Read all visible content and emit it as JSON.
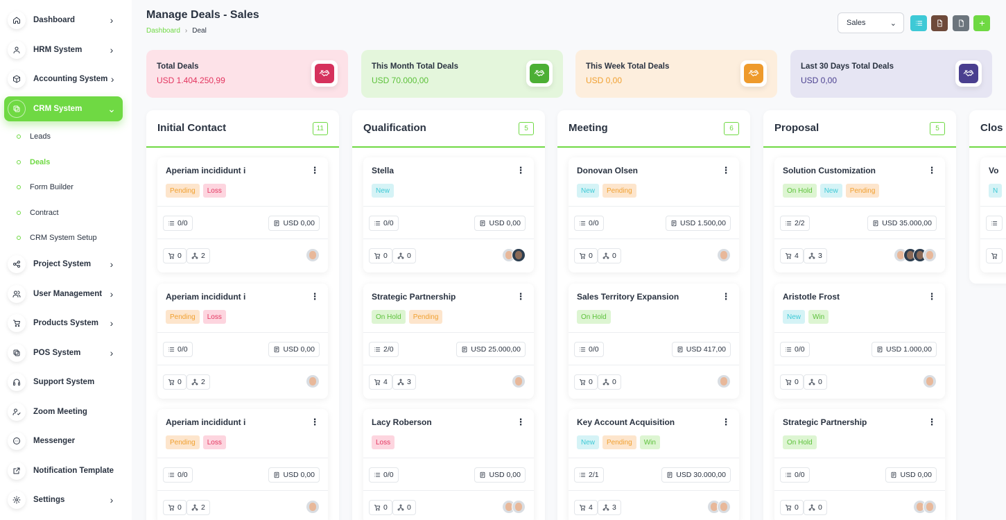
{
  "sidebar": {
    "items": [
      {
        "name": "dashboard",
        "label": "Dashboard",
        "icon": "home-icon",
        "chevron": "›",
        "active": false
      },
      {
        "name": "hrm-system",
        "label": "HRM System",
        "icon": "user-icon",
        "chevron": "›",
        "active": false
      },
      {
        "name": "accounting-system",
        "label": "Accounting System",
        "icon": "box-icon",
        "chevron": "›",
        "active": false
      },
      {
        "name": "crm-system",
        "label": "CRM System",
        "icon": "layers-icon",
        "chevron": "⌄",
        "active": true
      },
      {
        "name": "project-system",
        "label": "Project System",
        "icon": "share-icon",
        "chevron": "›",
        "active": false
      },
      {
        "name": "user-management",
        "label": "User Management",
        "icon": "users-icon",
        "chevron": "›",
        "active": false
      },
      {
        "name": "products-system",
        "label": "Products System",
        "icon": "cart-icon",
        "chevron": "›",
        "active": false
      },
      {
        "name": "pos-system",
        "label": "POS System",
        "icon": "layers-icon",
        "chevron": "›",
        "active": false
      },
      {
        "name": "support-system",
        "label": "Support System",
        "icon": "headphones-icon",
        "chevron": "",
        "active": false
      },
      {
        "name": "zoom-meeting",
        "label": "Zoom Meeting",
        "icon": "user-check-icon",
        "chevron": "",
        "active": false
      },
      {
        "name": "messenger",
        "label": "Messenger",
        "icon": "message-icon",
        "chevron": "",
        "active": false
      },
      {
        "name": "notification-template",
        "label": "Notification Template",
        "icon": "external-icon",
        "chevron": "",
        "active": false
      },
      {
        "name": "settings",
        "label": "Settings",
        "icon": "gear-icon",
        "chevron": "›",
        "active": false
      }
    ],
    "crm_subitems": [
      {
        "name": "leads",
        "label": "Leads",
        "active": false
      },
      {
        "name": "deals",
        "label": "Deals",
        "active": true
      },
      {
        "name": "form-builder",
        "label": "Form Builder",
        "active": false
      },
      {
        "name": "contract",
        "label": "Contract",
        "active": false
      },
      {
        "name": "crm-system-setup",
        "label": "CRM System Setup",
        "active": false
      }
    ]
  },
  "header": {
    "title": "Manage Deals - Sales",
    "breadcrumb": {
      "home": "Dashboard",
      "separator": "›",
      "current": "Deal"
    },
    "pipeline_select": {
      "value": "Sales",
      "caret": "⌄"
    },
    "buttons": [
      {
        "name": "list-view-button",
        "icon": "list-icon",
        "color": "#3ec9d6"
      },
      {
        "name": "import-button",
        "icon": "file-import-icon",
        "color": "#6e4a3a"
      },
      {
        "name": "export-button",
        "icon": "file-icon",
        "color": "#6c757d"
      },
      {
        "name": "add-deal-button",
        "icon": "plus-icon",
        "color": "#6fd943"
      }
    ]
  },
  "stats": [
    {
      "name": "total-deals",
      "label": "Total Deals",
      "value": "USD 1.404.250,99",
      "bg": "#fde2e8",
      "icon_bg": "#d5325d",
      "value_color": "#e3355f"
    },
    {
      "name": "this-month-total-deals",
      "label": "This Month Total Deals",
      "value": "USD 70.000,00",
      "bg": "#e4f6dc",
      "icon_bg": "#4caf35",
      "value_color": "#5cc13a"
    },
    {
      "name": "this-week-total-deals",
      "label": "This Week Total Deals",
      "value": "USD 0,00",
      "bg": "#fdeedd",
      "icon_bg": "#ee9a2c",
      "value_color": "#f0a030"
    },
    {
      "name": "last-30-days-total-deals",
      "label": "Last 30 Days Total Deals",
      "value": "USD 0,00",
      "bg": "#e6e5f3",
      "icon_bg": "#4a3f8f",
      "value_color": "#4a3f8f"
    }
  ],
  "badge_colors": {
    "Pending": {
      "bg": "#fde5cc",
      "fg": "#f0a030"
    },
    "Loss": {
      "bg": "#fdd5df",
      "fg": "#e3355f"
    },
    "New": {
      "bg": "#d5f3f6",
      "fg": "#3ec9d6"
    },
    "On Hold": {
      "bg": "#ddf5d2",
      "fg": "#5cc13a"
    },
    "Win": {
      "bg": "#ddf5d2",
      "fg": "#5cc13a"
    }
  },
  "columns": [
    {
      "name": "initial-contact",
      "title": "Initial Contact",
      "count": "11",
      "cards": [
        {
          "title": "Aperiam incididunt i",
          "badges": [
            "Pending",
            "Loss"
          ],
          "tasks": "0/0",
          "price": "USD 0,00",
          "products": "0",
          "sources": "2",
          "avatars": 1,
          "dark": []
        },
        {
          "title": "Aperiam incididunt i",
          "badges": [
            "Pending",
            "Loss"
          ],
          "tasks": "0/0",
          "price": "USD 0,00",
          "products": "0",
          "sources": "2",
          "avatars": 1,
          "dark": []
        },
        {
          "title": "Aperiam incididunt i",
          "badges": [
            "Pending",
            "Loss"
          ],
          "tasks": "0/0",
          "price": "USD 0,00",
          "products": "0",
          "sources": "2",
          "avatars": 1,
          "dark": []
        }
      ]
    },
    {
      "name": "qualification",
      "title": "Qualification",
      "count": "5",
      "cards": [
        {
          "title": "Stella",
          "badges": [
            "New"
          ],
          "tasks": "0/0",
          "price": "USD 0,00",
          "products": "0",
          "sources": "0",
          "avatars": 2,
          "dark": [
            0
          ]
        },
        {
          "title": "Strategic Partnership",
          "badges": [
            "On Hold",
            "Pending"
          ],
          "tasks": "2/0",
          "price": "USD 25.000,00",
          "products": "4",
          "sources": "3",
          "avatars": 1,
          "dark": []
        },
        {
          "title": "Lacy Roberson",
          "badges": [
            "Loss"
          ],
          "tasks": "0/0",
          "price": "USD 0,00",
          "products": "0",
          "sources": "0",
          "avatars": 2,
          "dark": []
        }
      ]
    },
    {
      "name": "meeting",
      "title": "Meeting",
      "count": "6",
      "cards": [
        {
          "title": "Donovan Olsen",
          "badges": [
            "New",
            "Pending"
          ],
          "tasks": "0/0",
          "price": "USD 1.500,00",
          "products": "0",
          "sources": "0",
          "avatars": 1,
          "dark": []
        },
        {
          "title": "Sales Territory Expansion",
          "badges": [
            "On Hold"
          ],
          "tasks": "0/0",
          "price": "USD 417,00",
          "products": "0",
          "sources": "0",
          "avatars": 1,
          "dark": []
        },
        {
          "title": "Key Account Acquisition",
          "badges": [
            "New",
            "Pending",
            "Win"
          ],
          "tasks": "2/1",
          "price": "USD 30.000,00",
          "products": "4",
          "sources": "3",
          "avatars": 2,
          "dark": []
        }
      ]
    },
    {
      "name": "proposal",
      "title": "Proposal",
      "count": "5",
      "cards": [
        {
          "title": "Solution Customization",
          "badges": [
            "On Hold",
            "New",
            "Pending"
          ],
          "tasks": "2/2",
          "price": "USD 35.000,00",
          "products": "4",
          "sources": "3",
          "avatars": 4,
          "dark": [
            1,
            2
          ]
        },
        {
          "title": "Aristotle Frost",
          "badges": [
            "New",
            "Win"
          ],
          "tasks": "0/0",
          "price": "USD 1.000,00",
          "products": "0",
          "sources": "0",
          "avatars": 1,
          "dark": []
        },
        {
          "title": "Strategic Partnership",
          "badges": [
            "On Hold"
          ],
          "tasks": "0/0",
          "price": "USD 0,00",
          "products": "0",
          "sources": "0",
          "avatars": 2,
          "dark": []
        }
      ]
    }
  ],
  "partial_column": {
    "title": "Clos",
    "card_title": "Vo",
    "badge": "N"
  }
}
